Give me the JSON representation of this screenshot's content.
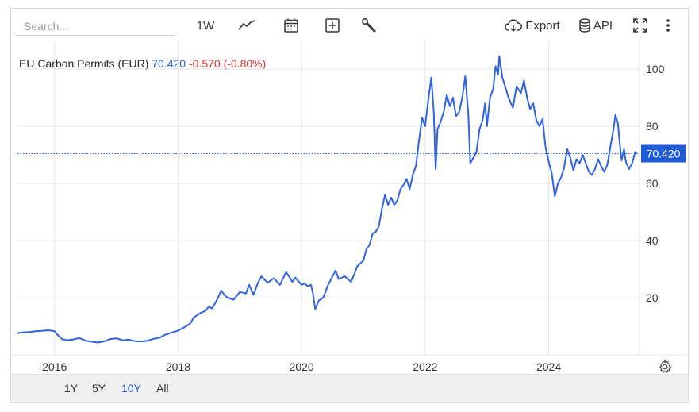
{
  "search": {
    "placeholder": "Search..."
  },
  "toolbar": {
    "interval_label": "1W",
    "export_label": "Export",
    "api_label": "API"
  },
  "legend": {
    "name": "EU Carbon Permits (EUR)",
    "last": "70.420",
    "change": "-0.570 (-0.80%)"
  },
  "ranges": [
    {
      "label": "1Y",
      "active": false
    },
    {
      "label": "5Y",
      "active": false
    },
    {
      "label": "10Y",
      "active": true
    },
    {
      "label": "All",
      "active": false
    }
  ],
  "colors": {
    "line": "#2f63e4",
    "accent": "#1f5bd8",
    "negative": "#e03131",
    "grid": "#e6e6e6"
  },
  "chart_data": {
    "type": "line",
    "series": [
      {
        "values": [
          [
            2015.4,
            7.6
          ],
          [
            2015.5,
            7.9
          ],
          [
            2015.6,
            8.0
          ],
          [
            2015.7,
            8.3
          ],
          [
            2015.8,
            8.4
          ],
          [
            2015.9,
            8.6
          ],
          [
            2016.0,
            8.3
          ],
          [
            2016.05,
            7.0
          ],
          [
            2016.12,
            5.5
          ],
          [
            2016.2,
            5.1
          ],
          [
            2016.3,
            5.4
          ],
          [
            2016.4,
            5.9
          ],
          [
            2016.5,
            5.0
          ],
          [
            2016.6,
            4.6
          ],
          [
            2016.7,
            4.3
          ],
          [
            2016.8,
            4.7
          ],
          [
            2016.9,
            5.5
          ],
          [
            2017.0,
            5.8
          ],
          [
            2017.1,
            5.1
          ],
          [
            2017.2,
            5.3
          ],
          [
            2017.3,
            4.8
          ],
          [
            2017.4,
            4.7
          ],
          [
            2017.5,
            4.9
          ],
          [
            2017.6,
            5.6
          ],
          [
            2017.7,
            6.0
          ],
          [
            2017.8,
            7.1
          ],
          [
            2017.9,
            7.8
          ],
          [
            2018.0,
            8.5
          ],
          [
            2018.1,
            9.6
          ],
          [
            2018.2,
            11.0
          ],
          [
            2018.25,
            13.0
          ],
          [
            2018.35,
            14.5
          ],
          [
            2018.45,
            15.5
          ],
          [
            2018.5,
            17.0
          ],
          [
            2018.55,
            16.2
          ],
          [
            2018.62,
            18.8
          ],
          [
            2018.7,
            22.5
          ],
          [
            2018.75,
            21.0
          ],
          [
            2018.8,
            20.0
          ],
          [
            2018.9,
            19.3
          ],
          [
            2019.0,
            22.0
          ],
          [
            2019.1,
            21.5
          ],
          [
            2019.15,
            24.5
          ],
          [
            2019.22,
            21.0
          ],
          [
            2019.3,
            25.5
          ],
          [
            2019.35,
            27.5
          ],
          [
            2019.45,
            25.2
          ],
          [
            2019.55,
            26.8
          ],
          [
            2019.65,
            24.5
          ],
          [
            2019.75,
            29.0
          ],
          [
            2019.85,
            25.5
          ],
          [
            2019.9,
            27.0
          ],
          [
            2020.0,
            24.5
          ],
          [
            2020.05,
            25.0
          ],
          [
            2020.1,
            24.0
          ],
          [
            2020.15,
            24.5
          ],
          [
            2020.18,
            22.0
          ],
          [
            2020.22,
            16.0
          ],
          [
            2020.28,
            19.0
          ],
          [
            2020.35,
            20.0
          ],
          [
            2020.42,
            24.0
          ],
          [
            2020.5,
            27.5
          ],
          [
            2020.55,
            29.5
          ],
          [
            2020.6,
            26.5
          ],
          [
            2020.7,
            27.5
          ],
          [
            2020.8,
            25.5
          ],
          [
            2020.85,
            28.0
          ],
          [
            2020.9,
            31.0
          ],
          [
            2021.0,
            33.0
          ],
          [
            2021.05,
            37.0
          ],
          [
            2021.1,
            38.5
          ],
          [
            2021.15,
            42.5
          ],
          [
            2021.2,
            43.0
          ],
          [
            2021.25,
            45.0
          ],
          [
            2021.3,
            51.0
          ],
          [
            2021.35,
            56.0
          ],
          [
            2021.4,
            52.5
          ],
          [
            2021.45,
            55.0
          ],
          [
            2021.5,
            52.5
          ],
          [
            2021.55,
            54.0
          ],
          [
            2021.6,
            58.0
          ],
          [
            2021.65,
            59.5
          ],
          [
            2021.7,
            61.5
          ],
          [
            2021.75,
            58.0
          ],
          [
            2021.8,
            63.0
          ],
          [
            2021.85,
            66.0
          ],
          [
            2021.9,
            75.0
          ],
          [
            2021.95,
            83.0
          ],
          [
            2022.0,
            80.0
          ],
          [
            2022.05,
            89.0
          ],
          [
            2022.1,
            97.0
          ],
          [
            2022.14,
            85.0
          ],
          [
            2022.17,
            65.0
          ],
          [
            2022.2,
            79.0
          ],
          [
            2022.25,
            81.5
          ],
          [
            2022.3,
            85.0
          ],
          [
            2022.35,
            91.0
          ],
          [
            2022.4,
            87.0
          ],
          [
            2022.45,
            90.0
          ],
          [
            2022.5,
            83.5
          ],
          [
            2022.55,
            85.0
          ],
          [
            2022.6,
            90.0
          ],
          [
            2022.65,
            97.5
          ],
          [
            2022.7,
            84.0
          ],
          [
            2022.73,
            67.0
          ],
          [
            2022.78,
            69.0
          ],
          [
            2022.83,
            71.0
          ],
          [
            2022.88,
            79.0
          ],
          [
            2022.93,
            82.0
          ],
          [
            2022.97,
            88.0
          ],
          [
            2023.0,
            80.0
          ],
          [
            2023.05,
            90.0
          ],
          [
            2023.1,
            93.0
          ],
          [
            2023.14,
            101.0
          ],
          [
            2023.18,
            98.0
          ],
          [
            2023.2,
            104.5
          ],
          [
            2023.25,
            97.0
          ],
          [
            2023.3,
            93.5
          ],
          [
            2023.35,
            90.0
          ],
          [
            2023.42,
            86.5
          ],
          [
            2023.48,
            94.0
          ],
          [
            2023.55,
            91.5
          ],
          [
            2023.6,
            96.0
          ],
          [
            2023.65,
            90.0
          ],
          [
            2023.7,
            86.0
          ],
          [
            2023.75,
            88.0
          ],
          [
            2023.8,
            82.0
          ],
          [
            2023.85,
            80.0
          ],
          [
            2023.9,
            82.5
          ],
          [
            2023.95,
            72.5
          ],
          [
            2024.0,
            67.5
          ],
          [
            2024.05,
            63.5
          ],
          [
            2024.1,
            55.5
          ],
          [
            2024.15,
            60.0
          ],
          [
            2024.2,
            62.0
          ],
          [
            2024.25,
            65.5
          ],
          [
            2024.3,
            72.0
          ],
          [
            2024.35,
            69.0
          ],
          [
            2024.4,
            64.5
          ],
          [
            2024.45,
            68.5
          ],
          [
            2024.5,
            67.0
          ],
          [
            2024.55,
            70.0
          ],
          [
            2024.6,
            67.0
          ],
          [
            2024.65,
            64.0
          ],
          [
            2024.7,
            63.0
          ],
          [
            2024.75,
            65.0
          ],
          [
            2024.8,
            68.5
          ],
          [
            2024.85,
            66.0
          ],
          [
            2024.9,
            64.0
          ],
          [
            2024.95,
            66.5
          ],
          [
            2025.0,
            73.0
          ],
          [
            2025.05,
            79.0
          ],
          [
            2025.08,
            84.0
          ],
          [
            2025.12,
            81.0
          ],
          [
            2025.15,
            74.0
          ],
          [
            2025.18,
            68.0
          ],
          [
            2025.22,
            72.0
          ],
          [
            2025.25,
            67.5
          ],
          [
            2025.3,
            65.0
          ],
          [
            2025.35,
            67.0
          ],
          [
            2025.4,
            71.0
          ],
          [
            2025.42,
            70.4
          ]
        ]
      }
    ],
    "xlim": [
      2015.4,
      2025.47
    ],
    "ylim": [
      0,
      110
    ],
    "x_ticks": [
      2016,
      2018,
      2020,
      2022,
      2024
    ],
    "x_tick_labels": [
      "2016",
      "2018",
      "2020",
      "2022",
      "2024"
    ],
    "y_ticks": [
      20,
      40,
      60,
      80,
      100
    ],
    "y_tick_labels": [
      "20",
      "40",
      "60",
      "80",
      "100"
    ],
    "last_value": 70.42,
    "last_value_label": "70.420",
    "grid": true,
    "y_axis_side": "right"
  }
}
